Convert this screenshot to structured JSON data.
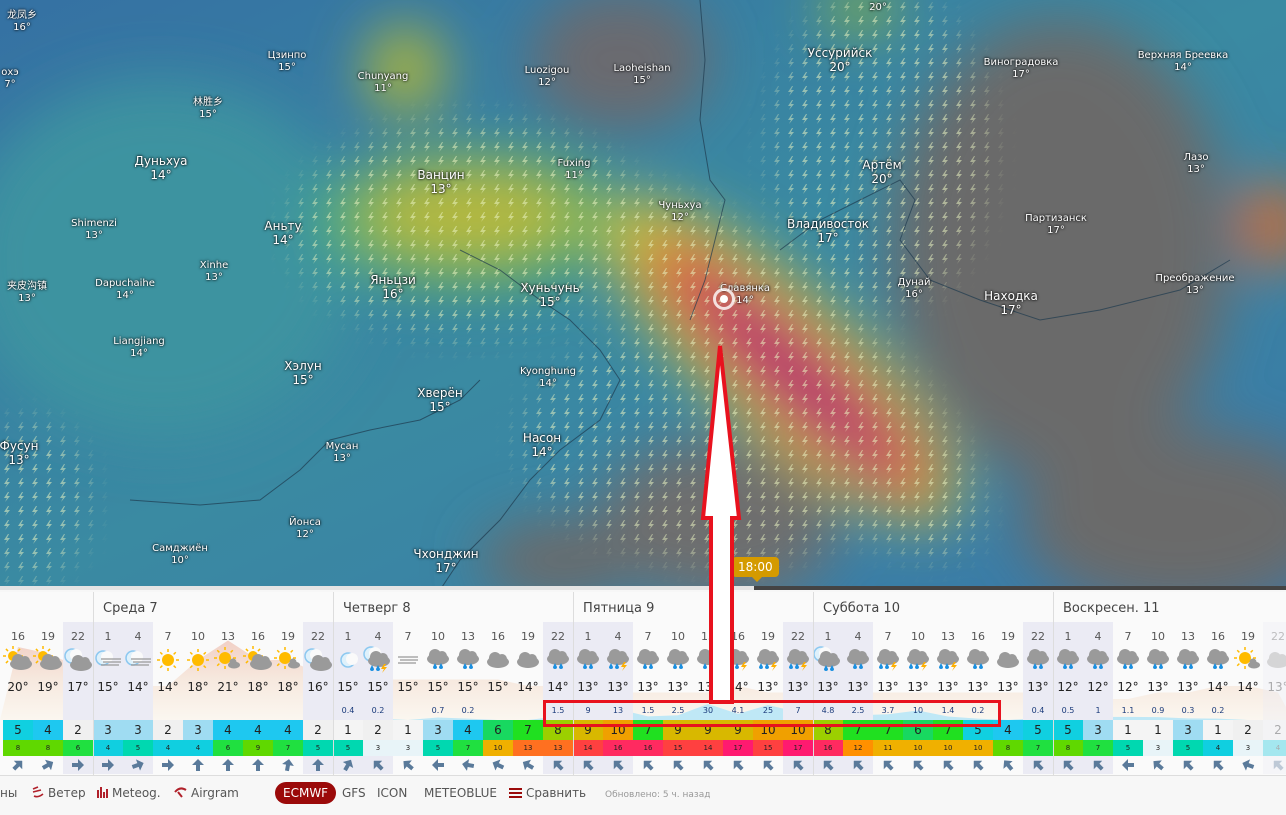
{
  "map": {
    "labels": [
      {
        "name": "龙凤乡",
        "temp": "16°"
      },
      {
        "name": "охэ",
        "temp": "7°"
      },
      {
        "name": "Цзинпо",
        "temp": "15°"
      },
      {
        "name": "Chunyang",
        "temp": "11°"
      },
      {
        "name": "林胜乡",
        "temp": "15°"
      },
      {
        "name": "Дуньхуа",
        "temp": "14°"
      },
      {
        "name": "Shimenzi",
        "temp": "13°"
      },
      {
        "name": "Аньту",
        "temp": "14°"
      },
      {
        "name": "Xinhe",
        "temp": "13°"
      },
      {
        "name": "Dapuchaihe",
        "temp": "14°"
      },
      {
        "name": "夹皮沟镇",
        "temp": "13°"
      },
      {
        "name": "Ванцин",
        "temp": "13°"
      },
      {
        "name": "Яньцзи",
        "temp": "16°"
      },
      {
        "name": "Luozigou",
        "temp": "12°"
      },
      {
        "name": "Laoheishan",
        "temp": "15°"
      },
      {
        "name": "Fuxing",
        "temp": "11°"
      },
      {
        "name": "Чуньхуа",
        "temp": "12°"
      },
      {
        "name": "Хуньчунь",
        "temp": "15°"
      },
      {
        "name": "Славянка",
        "temp": "14°"
      },
      {
        "name": "Уссурийск",
        "temp": "20°"
      },
      {
        "name": "Владивосток",
        "temp": "17°"
      },
      {
        "name": "Артём",
        "temp": "20°"
      },
      {
        "name": "",
        "temp": "20°"
      },
      {
        "name": "Виноградовка",
        "temp": "17°"
      },
      {
        "name": "Верхняя Бреевка",
        "temp": "14°"
      },
      {
        "name": "Лазо",
        "temp": "13°"
      },
      {
        "name": "Партизанск",
        "temp": "17°"
      },
      {
        "name": "Дунай",
        "temp": "16°"
      },
      {
        "name": "Находка",
        "temp": "17°"
      },
      {
        "name": "Преображение",
        "temp": "13°"
      },
      {
        "name": "Liangjiang",
        "temp": "14°"
      },
      {
        "name": "Хэлун",
        "temp": "15°"
      },
      {
        "name": "Фусун",
        "temp": "13°"
      },
      {
        "name": "Хверён",
        "temp": "15°"
      },
      {
        "name": "Kyonghung",
        "temp": "14°"
      },
      {
        "name": "Мусан",
        "temp": "13°"
      },
      {
        "name": "Насон",
        "temp": "14°"
      },
      {
        "name": "Йонса",
        "temp": "12°"
      },
      {
        "name": "Самджиён",
        "temp": "10°"
      },
      {
        "name": "Чхонджин",
        "temp": "17°"
      }
    ],
    "colors": {
      "rain_heavy": "#c8285a",
      "rain_core": "#a5267e",
      "rain_mid": "#c9c23a",
      "rain_light": "#3fa86a",
      "dry": "#6b6b6b",
      "base": "#3a7ea6"
    }
  },
  "timeline": {
    "current_time": "18:00",
    "progress_percent": 58.6
  },
  "forecast": {
    "days": [
      "Среда 7",
      "Четверг 8",
      "Пятница 9",
      "Суббота 10",
      "Воскресен. 11"
    ],
    "columns": [
      {
        "h": "16",
        "icon": "sun-cloud",
        "t": "20°",
        "p": "",
        "w": 5,
        "g": 8,
        "d": 45
      },
      {
        "h": "19",
        "icon": "sun-cloud",
        "t": "19°",
        "p": "",
        "w": 4,
        "g": 8,
        "d": 60
      },
      {
        "h": "22",
        "icon": "moon-cloud",
        "t": "17°",
        "p": "",
        "w": 2,
        "g": 6,
        "d": 90
      },
      {
        "h": "1",
        "icon": "moon-fog",
        "t": "15°",
        "p": "",
        "w": 3,
        "g": 4,
        "d": 90
      },
      {
        "h": "4",
        "icon": "moon-fog",
        "t": "14°",
        "p": "",
        "w": 3,
        "g": 5,
        "d": 70
      },
      {
        "h": "7",
        "icon": "sun",
        "t": "14°",
        "p": "",
        "w": 2,
        "g": 4,
        "d": 90
      },
      {
        "h": "10",
        "icon": "sun",
        "t": "18°",
        "p": "",
        "w": 3,
        "g": 4,
        "d": 0
      },
      {
        "h": "13",
        "icon": "sun-smallcloud",
        "t": "21°",
        "p": "",
        "w": 4,
        "g": 6,
        "d": 0
      },
      {
        "h": "16",
        "icon": "sun-cloud",
        "t": "18°",
        "p": "",
        "w": 4,
        "g": 9,
        "d": 0
      },
      {
        "h": "19",
        "icon": "sun-smallcloud",
        "t": "18°",
        "p": "",
        "w": 4,
        "g": 7,
        "d": 10
      },
      {
        "h": "22",
        "icon": "moon-cloud",
        "t": "16°",
        "p": "",
        "w": 2,
        "g": 5,
        "d": 0
      },
      {
        "h": "1",
        "icon": "moon",
        "t": "15°",
        "p": "0.4",
        "w": 1,
        "g": 5,
        "d": 30
      },
      {
        "h": "4",
        "icon": "moon-storm",
        "t": "15°",
        "p": "0.2",
        "w": 2,
        "g": 3,
        "d": -45
      },
      {
        "h": "7",
        "icon": "fog",
        "t": "15°",
        "p": "",
        "w": 1,
        "g": 3,
        "d": -50
      },
      {
        "h": "10",
        "icon": "rain",
        "t": "15°",
        "p": "0.7",
        "w": 3,
        "g": 5,
        "d": -90
      },
      {
        "h": "13",
        "icon": "rain",
        "t": "15°",
        "p": "0.2",
        "w": 4,
        "g": 7,
        "d": -80
      },
      {
        "h": "16",
        "icon": "cloud",
        "t": "15°",
        "p": "",
        "w": 6,
        "g": 10,
        "d": -65
      },
      {
        "h": "19",
        "icon": "cloud",
        "t": "14°",
        "p": "",
        "w": 7,
        "g": 13,
        "d": -60
      },
      {
        "h": "22",
        "icon": "rain",
        "t": "14°",
        "p": "1.5",
        "w": 8,
        "g": 13,
        "d": -45
      },
      {
        "h": "1",
        "icon": "rain",
        "t": "13°",
        "p": "9",
        "w": 9,
        "g": 14,
        "d": -45
      },
      {
        "h": "4",
        "icon": "storm",
        "t": "13°",
        "p": "13",
        "w": 10,
        "g": 16,
        "d": -45
      },
      {
        "h": "7",
        "icon": "rain",
        "t": "13°",
        "p": "1.5",
        "w": 7,
        "g": 16,
        "d": -45
      },
      {
        "h": "10",
        "icon": "rain",
        "t": "13°",
        "p": "2.5",
        "w": 9,
        "g": 15,
        "d": -45
      },
      {
        "h": "13",
        "icon": "rain",
        "t": "13°",
        "p": "30",
        "w": 9,
        "g": 14,
        "d": -45
      },
      {
        "h": "16",
        "icon": "storm",
        "t": "14°",
        "p": "4.1",
        "w": 9,
        "g": 17,
        "d": -45
      },
      {
        "h": "19",
        "icon": "storm",
        "t": "13°",
        "p": "25",
        "w": 10,
        "g": 15,
        "d": -45
      },
      {
        "h": "22",
        "icon": "storm",
        "t": "13°",
        "p": "7",
        "w": 10,
        "g": 17,
        "d": -45
      },
      {
        "h": "1",
        "icon": "moon-rain",
        "t": "13°",
        "p": "4.8",
        "w": 8,
        "g": 16,
        "d": -45
      },
      {
        "h": "4",
        "icon": "rain",
        "t": "13°",
        "p": "2.5",
        "w": 7,
        "g": 12,
        "d": -45
      },
      {
        "h": "7",
        "icon": "storm",
        "t": "13°",
        "p": "3.7",
        "w": 7,
        "g": 11,
        "d": -45
      },
      {
        "h": "10",
        "icon": "storm",
        "t": "13°",
        "p": "10",
        "w": 6,
        "g": 10,
        "d": -45
      },
      {
        "h": "13",
        "icon": "storm",
        "t": "13°",
        "p": "1.4",
        "w": 7,
        "g": 10,
        "d": -45
      },
      {
        "h": "16",
        "icon": "rain",
        "t": "13°",
        "p": "0.2",
        "w": 5,
        "g": 10,
        "d": -45
      },
      {
        "h": "19",
        "icon": "cloud",
        "t": "13°",
        "p": "",
        "w": 4,
        "g": 8,
        "d": -40
      },
      {
        "h": "22",
        "icon": "rain",
        "t": "13°",
        "p": "0.4",
        "w": 5,
        "g": 7,
        "d": -45
      },
      {
        "h": "1",
        "icon": "rain",
        "t": "12°",
        "p": "0.5",
        "w": 5,
        "g": 8,
        "d": -45
      },
      {
        "h": "4",
        "icon": "rain",
        "t": "12°",
        "p": "1",
        "w": 3,
        "g": 7,
        "d": -45
      },
      {
        "h": "7",
        "icon": "rain",
        "t": "12°",
        "p": "1.1",
        "w": 1,
        "g": 5,
        "d": -90
      },
      {
        "h": "10",
        "icon": "rain",
        "t": "13°",
        "p": "0.9",
        "w": 1,
        "g": 3,
        "d": -50
      },
      {
        "h": "13",
        "icon": "rain",
        "t": "13°",
        "p": "0.3",
        "w": 3,
        "g": 5,
        "d": -45
      },
      {
        "h": "16",
        "icon": "rain",
        "t": "14°",
        "p": "0.2",
        "w": 1,
        "g": 4,
        "d": -45
      },
      {
        "h": "19",
        "icon": "sun-smallcloud",
        "t": "14°",
        "p": "",
        "w": 2,
        "g": 3,
        "d": -70
      },
      {
        "h": "22",
        "icon": "cloud",
        "t": "13°",
        "p": "",
        "w": 2,
        "g": 4,
        "d": -45
      }
    ]
  },
  "footer": {
    "cut_item": "ны",
    "wind": "Ветер",
    "meteogram": "Meteog.",
    "airgram": "Airgram",
    "models": [
      "ECMWF",
      "GFS",
      "ICON",
      "METEOBLUE"
    ],
    "active_model": "ECMWF",
    "compare": "Сравнить",
    "updated": "Обновлено: 5 ч. назад",
    "accent": "#9b0a0a"
  },
  "annotation": {
    "color": "#e8121e"
  }
}
